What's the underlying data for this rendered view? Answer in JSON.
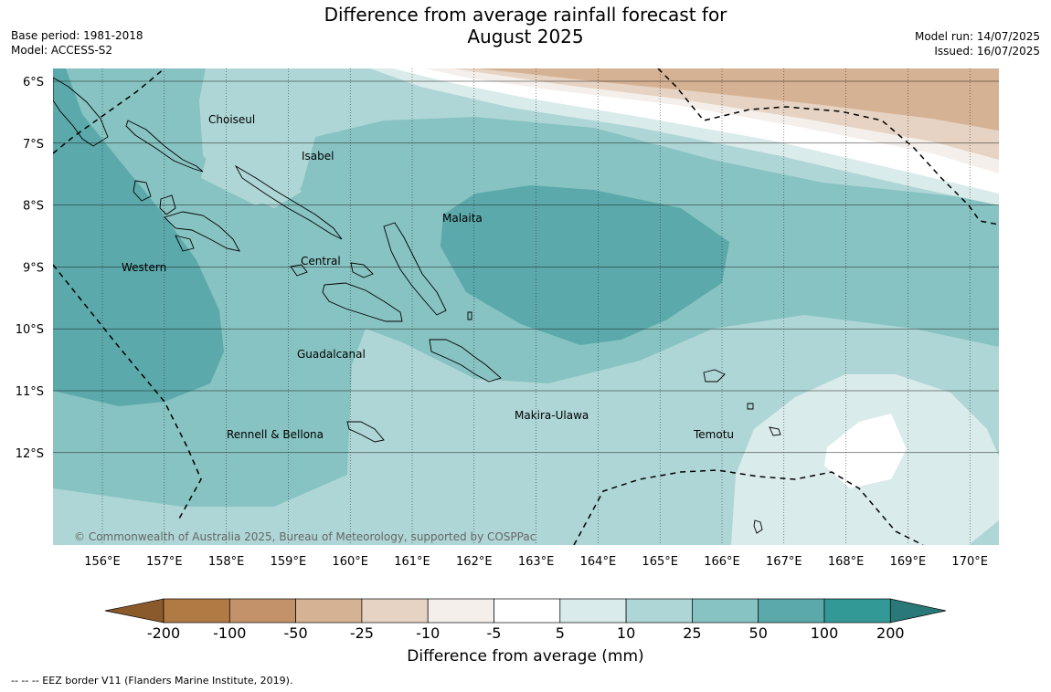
{
  "header": {
    "title_line1": "Difference from average rainfall forecast for",
    "title_line2": "August 2025",
    "base_period": "Base period: 1981-2018",
    "model": "Model: ACCESS-S2",
    "model_run": "Model run: 14/07/2025",
    "issued": "Issued: 16/07/2025"
  },
  "map": {
    "lat_labels": [
      "6°S",
      "7°S",
      "8°S",
      "9°S",
      "10°S",
      "11°S",
      "12°S"
    ],
    "lon_labels": [
      "156°E",
      "157°E",
      "158°E",
      "159°E",
      "160°E",
      "161°E",
      "162°E",
      "163°E",
      "164°E",
      "165°E",
      "166°E",
      "167°E",
      "168°E",
      "169°E",
      "170°E"
    ],
    "regions": [
      {
        "name": "Choiseul"
      },
      {
        "name": "Isabel"
      },
      {
        "name": "Malaita"
      },
      {
        "name": "Western"
      },
      {
        "name": "Central"
      },
      {
        "name": "Guadalcanal"
      },
      {
        "name": "Makira-Ulawa"
      },
      {
        "name": "Rennell & Bellona"
      },
      {
        "name": "Temotu"
      }
    ],
    "copyright": "© Commonwealth of Australia 2025, Bureau of Meteorology, supported by COSPPac"
  },
  "colorbar": {
    "tick_labels": [
      "-200",
      "-100",
      "-50",
      "-25",
      "-10",
      "-5",
      "5",
      "10",
      "25",
      "50",
      "100",
      "200"
    ],
    "colors": [
      "#b07a45",
      "#c4926a",
      "#d6b294",
      "#e6d3c3",
      "#f4efea",
      "#ffffff",
      "#d9ebea",
      "#afd6d6",
      "#87c3c2",
      "#5ba9ab",
      "#339996"
    ],
    "under_color": "#8a5a2b",
    "over_color": "#2a7877",
    "label": "Difference from average (mm)"
  },
  "legend_footer": "--  --  -- EEZ border V11 (Flanders Marine Institute, 2019)."
}
